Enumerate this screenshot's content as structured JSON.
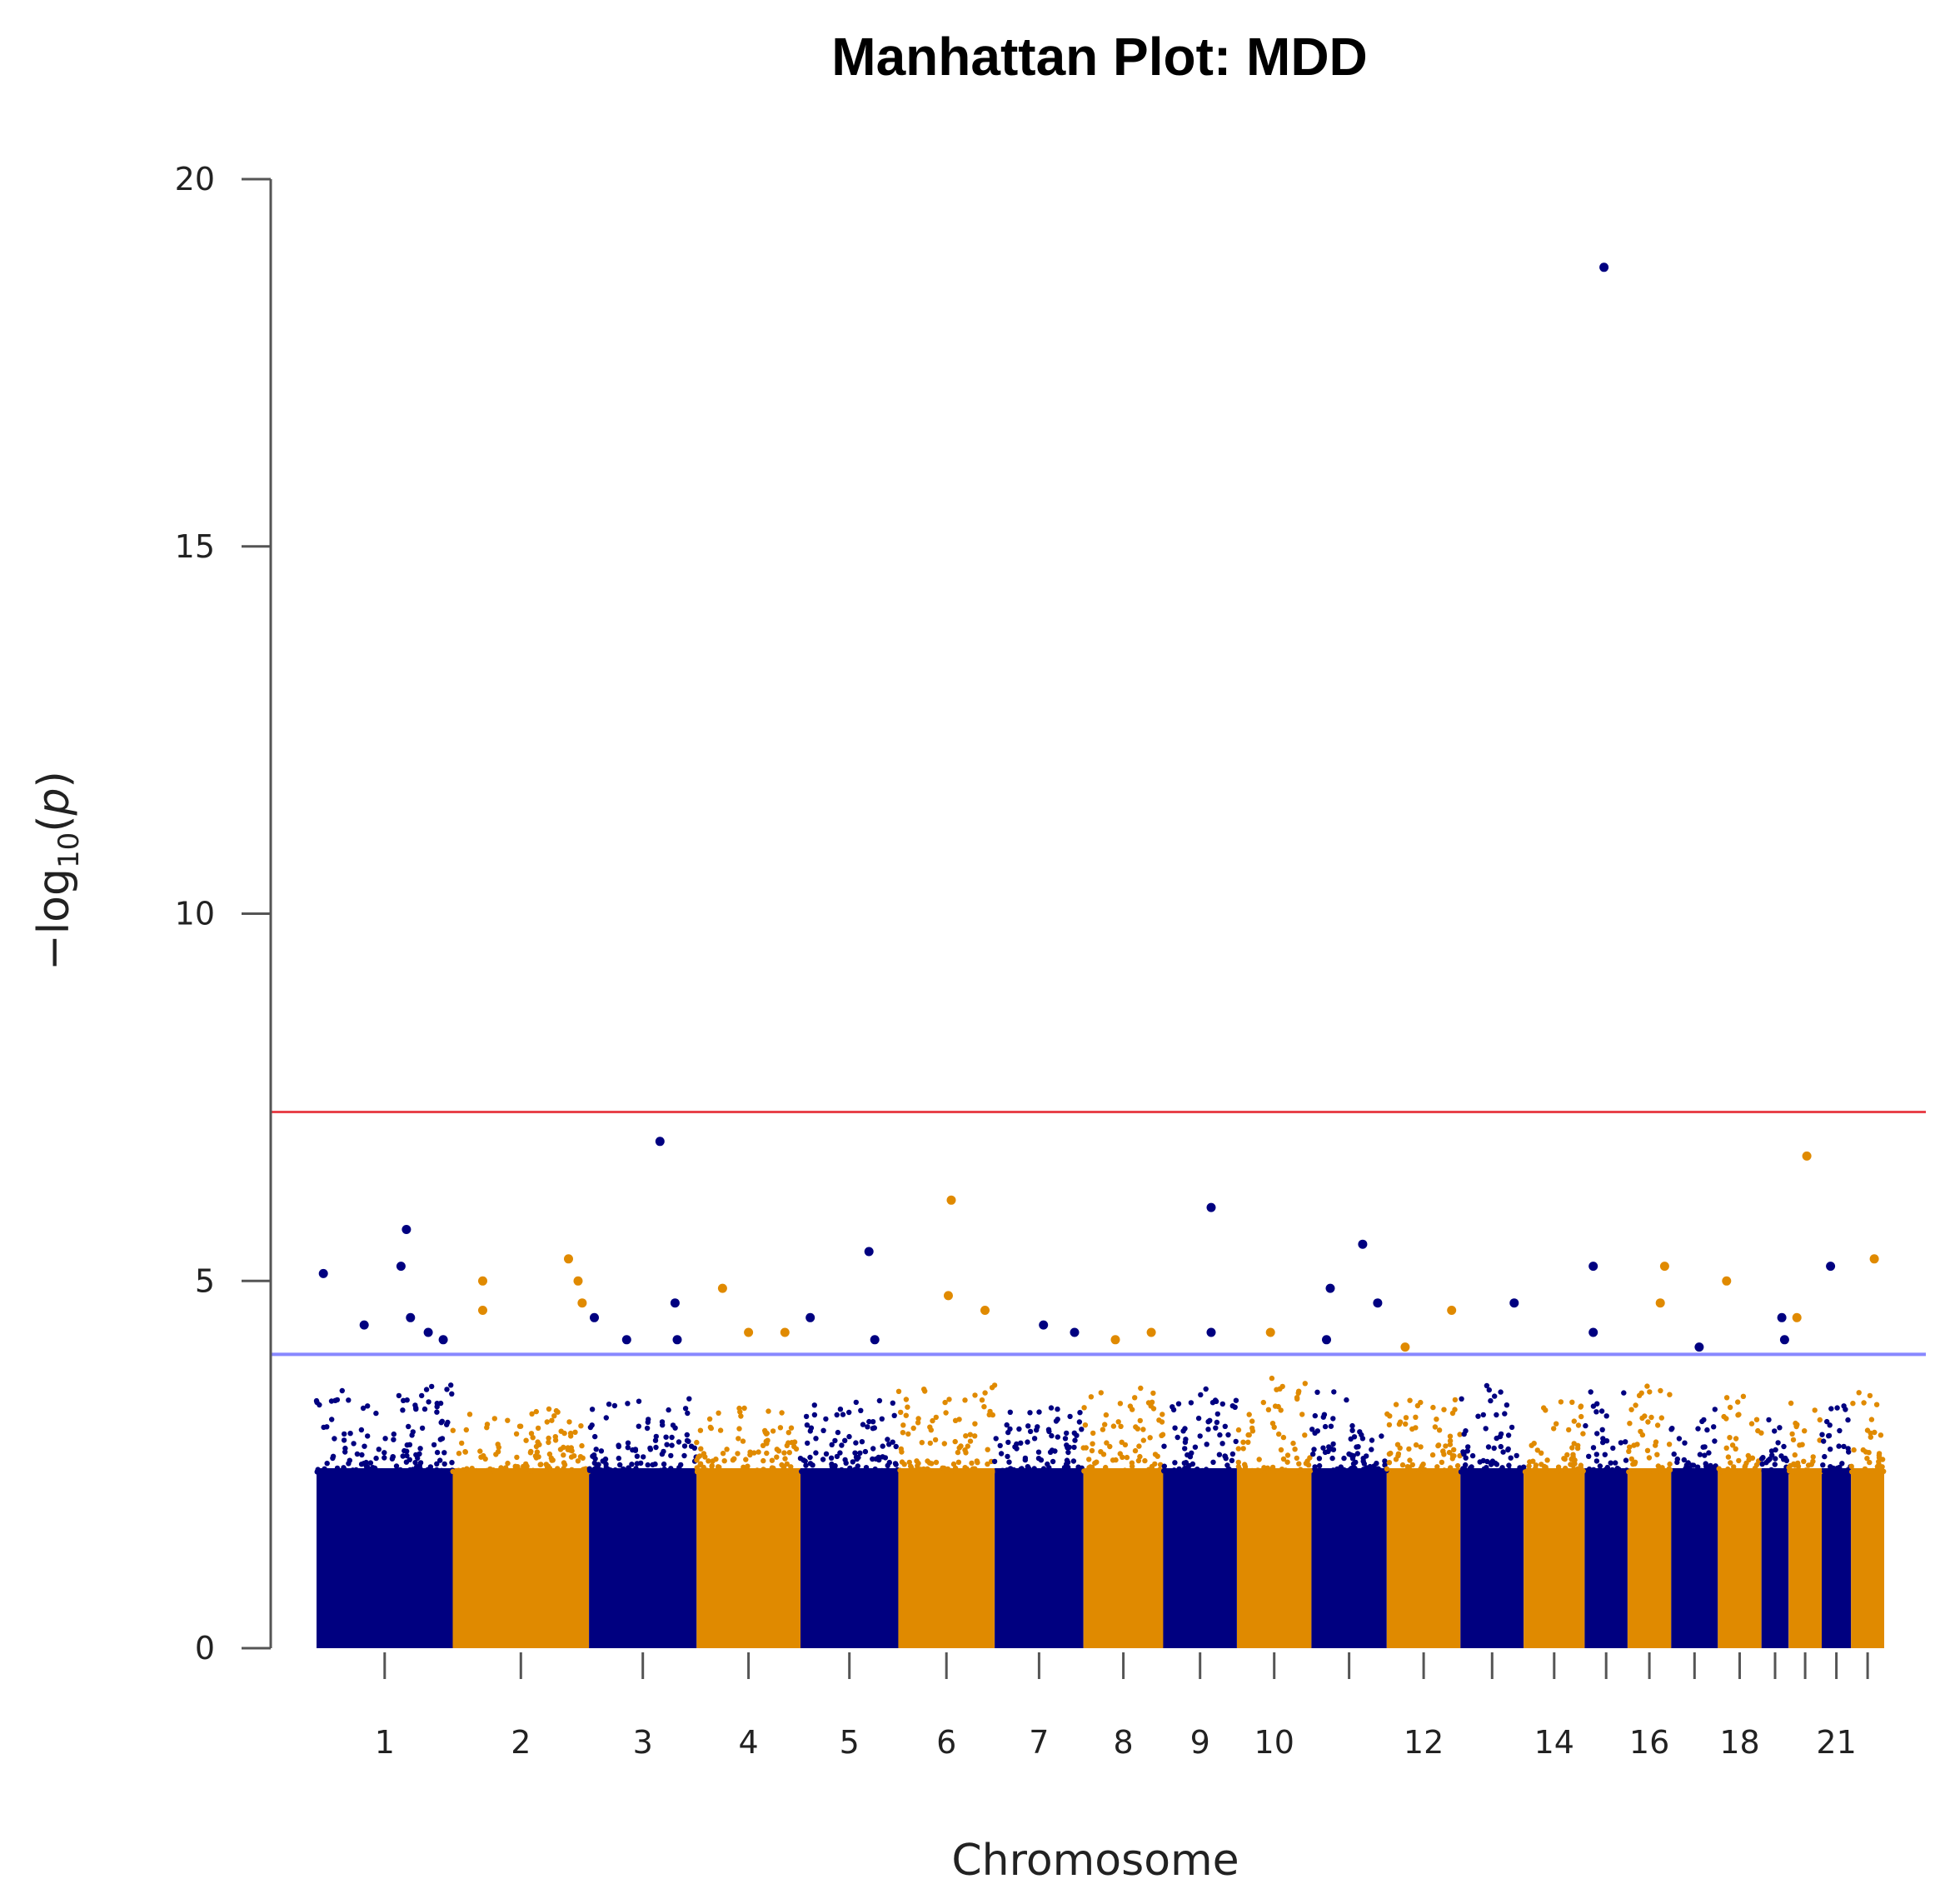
{
  "chart_data": {
    "type": "scatter",
    "subtype": "manhattan",
    "title": "Manhattan Plot: MDD",
    "xlabel": "Chromosome",
    "ylabel": "-log10(p)",
    "ylim": [
      0,
      20
    ],
    "yticks": [
      "0",
      "5",
      "10",
      "15",
      "20"
    ],
    "grid": false,
    "colors": {
      "odd": "#000080",
      "even": "#e08a00",
      "genome_wide_line": "#e8424a",
      "suggestive_line": "#8888ff"
    },
    "thresholds": {
      "genome_wide": 7.3,
      "suggestive": 4.0
    },
    "chromosomes": [
      {
        "chr": 1,
        "label": "1",
        "base_max": 3.6,
        "color": "odd"
      },
      {
        "chr": 2,
        "label": "2",
        "base_max": 3.3,
        "color": "even"
      },
      {
        "chr": 3,
        "label": "3",
        "base_max": 3.4,
        "color": "odd"
      },
      {
        "chr": 4,
        "label": "4",
        "base_max": 3.3,
        "color": "even"
      },
      {
        "chr": 5,
        "label": "5",
        "base_max": 3.4,
        "color": "odd"
      },
      {
        "chr": 6,
        "label": "6",
        "base_max": 3.6,
        "color": "even"
      },
      {
        "chr": 7,
        "label": "7",
        "base_max": 3.3,
        "color": "odd"
      },
      {
        "chr": 8,
        "label": "8",
        "base_max": 3.6,
        "color": "even"
      },
      {
        "chr": 9,
        "label": "9",
        "base_max": 3.6,
        "color": "odd"
      },
      {
        "chr": 10,
        "label": "10",
        "base_max": 3.7,
        "color": "even"
      },
      {
        "chr": 11,
        "label": "",
        "base_max": 3.5,
        "color": "odd"
      },
      {
        "chr": 12,
        "label": "12",
        "base_max": 3.4,
        "color": "even"
      },
      {
        "chr": 13,
        "label": "",
        "base_max": 3.6,
        "color": "odd"
      },
      {
        "chr": 14,
        "label": "14",
        "base_max": 3.4,
        "color": "even"
      },
      {
        "chr": 15,
        "label": "",
        "base_max": 3.5,
        "color": "odd"
      },
      {
        "chr": 16,
        "label": "16",
        "base_max": 3.6,
        "color": "even"
      },
      {
        "chr": 17,
        "label": "",
        "base_max": 3.3,
        "color": "odd"
      },
      {
        "chr": 18,
        "label": "18",
        "base_max": 3.5,
        "color": "even"
      },
      {
        "chr": 19,
        "label": "",
        "base_max": 3.2,
        "color": "odd"
      },
      {
        "chr": 20,
        "label": "",
        "base_max": 3.4,
        "color": "even"
      },
      {
        "chr": 21,
        "label": "21",
        "base_max": 3.3,
        "color": "odd"
      },
      {
        "chr": 22,
        "label": "",
        "base_max": 3.7,
        "color": "even"
      }
    ],
    "top_hits": [
      {
        "chr": 1,
        "pos": 0.05,
        "y": 5.1
      },
      {
        "chr": 1,
        "pos": 0.35,
        "y": 4.4
      },
      {
        "chr": 1,
        "pos": 0.62,
        "y": 5.2
      },
      {
        "chr": 1,
        "pos": 0.66,
        "y": 5.7
      },
      {
        "chr": 1,
        "pos": 0.69,
        "y": 4.5
      },
      {
        "chr": 1,
        "pos": 0.82,
        "y": 4.3
      },
      {
        "chr": 1,
        "pos": 0.93,
        "y": 4.2
      },
      {
        "chr": 2,
        "pos": 0.22,
        "y": 5.0
      },
      {
        "chr": 2,
        "pos": 0.22,
        "y": 4.6
      },
      {
        "chr": 2,
        "pos": 0.85,
        "y": 5.3
      },
      {
        "chr": 2,
        "pos": 0.92,
        "y": 5.0
      },
      {
        "chr": 2,
        "pos": 0.95,
        "y": 4.7
      },
      {
        "chr": 3,
        "pos": 0.05,
        "y": 4.5
      },
      {
        "chr": 3,
        "pos": 0.35,
        "y": 4.2
      },
      {
        "chr": 3,
        "pos": 0.66,
        "y": 6.9
      },
      {
        "chr": 3,
        "pos": 0.8,
        "y": 4.7
      },
      {
        "chr": 3,
        "pos": 0.82,
        "y": 4.2
      },
      {
        "chr": 4,
        "pos": 0.25,
        "y": 4.9
      },
      {
        "chr": 4,
        "pos": 0.5,
        "y": 4.3
      },
      {
        "chr": 4,
        "pos": 0.85,
        "y": 4.3
      },
      {
        "chr": 5,
        "pos": 0.1,
        "y": 4.5
      },
      {
        "chr": 5,
        "pos": 0.7,
        "y": 5.4
      },
      {
        "chr": 5,
        "pos": 0.76,
        "y": 4.2
      },
      {
        "chr": 6,
        "pos": 0.55,
        "y": 6.1
      },
      {
        "chr": 6,
        "pos": 0.52,
        "y": 4.8
      },
      {
        "chr": 6,
        "pos": 0.9,
        "y": 4.6
      },
      {
        "chr": 7,
        "pos": 0.55,
        "y": 4.4
      },
      {
        "chr": 7,
        "pos": 0.9,
        "y": 4.3
      },
      {
        "chr": 8,
        "pos": 0.4,
        "y": 4.2
      },
      {
        "chr": 8,
        "pos": 0.85,
        "y": 4.3
      },
      {
        "chr": 9,
        "pos": 0.65,
        "y": 6.0
      },
      {
        "chr": 9,
        "pos": 0.65,
        "y": 4.3
      },
      {
        "chr": 10,
        "pos": 0.45,
        "y": 4.3
      },
      {
        "chr": 11,
        "pos": 0.25,
        "y": 4.9
      },
      {
        "chr": 11,
        "pos": 0.2,
        "y": 4.2
      },
      {
        "chr": 11,
        "pos": 0.68,
        "y": 5.5
      },
      {
        "chr": 11,
        "pos": 0.88,
        "y": 4.7
      },
      {
        "chr": 12,
        "pos": 0.88,
        "y": 4.6
      },
      {
        "chr": 12,
        "pos": 0.25,
        "y": 4.1
      },
      {
        "chr": 13,
        "pos": 0.85,
        "y": 4.7
      },
      {
        "chr": 15,
        "pos": 0.2,
        "y": 5.2
      },
      {
        "chr": 15,
        "pos": 0.2,
        "y": 4.3
      },
      {
        "chr": 15,
        "pos": 0.45,
        "y": 18.8
      },
      {
        "chr": 16,
        "pos": 0.85,
        "y": 5.2
      },
      {
        "chr": 16,
        "pos": 0.75,
        "y": 4.7
      },
      {
        "chr": 17,
        "pos": 0.6,
        "y": 4.1
      },
      {
        "chr": 18,
        "pos": 0.2,
        "y": 5.0
      },
      {
        "chr": 19,
        "pos": 0.75,
        "y": 4.5
      },
      {
        "chr": 19,
        "pos": 0.85,
        "y": 4.2
      },
      {
        "chr": 20,
        "pos": 0.55,
        "y": 6.7
      },
      {
        "chr": 20,
        "pos": 0.25,
        "y": 4.5
      },
      {
        "chr": 21,
        "pos": 0.3,
        "y": 5.2
      },
      {
        "chr": 22,
        "pos": 0.7,
        "y": 5.3
      }
    ]
  }
}
